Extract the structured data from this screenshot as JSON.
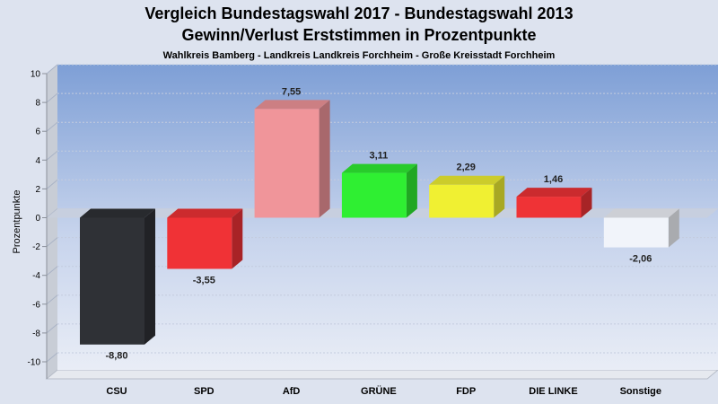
{
  "chart_data": {
    "type": "bar",
    "title": "Vergleich Bundestagswahl 2017 - Bundestagswahl 2013",
    "title2": "Gewinn/Verlust Erststimmen in Prozentpunkte",
    "subtitle": "Wahlkreis Bamberg - Landkreis Landkreis Forchheim - Große Kreisstadt Forchheim",
    "ylabel": "Prozentpunkte",
    "xlabel": "",
    "ylim": [
      -10,
      10
    ],
    "yticks": [
      10,
      8,
      6,
      4,
      2,
      0,
      -2,
      -4,
      -6,
      -8,
      -10
    ],
    "grid": true,
    "categories": [
      "CSU",
      "SPD",
      "AfD",
      "GRÜNE",
      "FDP",
      "DIE LINKE",
      "Sonstige"
    ],
    "values": [
      -8.8,
      -3.55,
      7.55,
      3.11,
      2.29,
      1.46,
      -2.06
    ],
    "value_labels": [
      "-8,80",
      "-3,55",
      "7,55",
      "3,11",
      "2,29",
      "1,46",
      "-2,06"
    ],
    "colors": [
      "#2f3136",
      "#f03236",
      "#f0959a",
      "#2fef32",
      "#f0f032",
      "#ef3336",
      "#f1f4fa"
    ]
  }
}
